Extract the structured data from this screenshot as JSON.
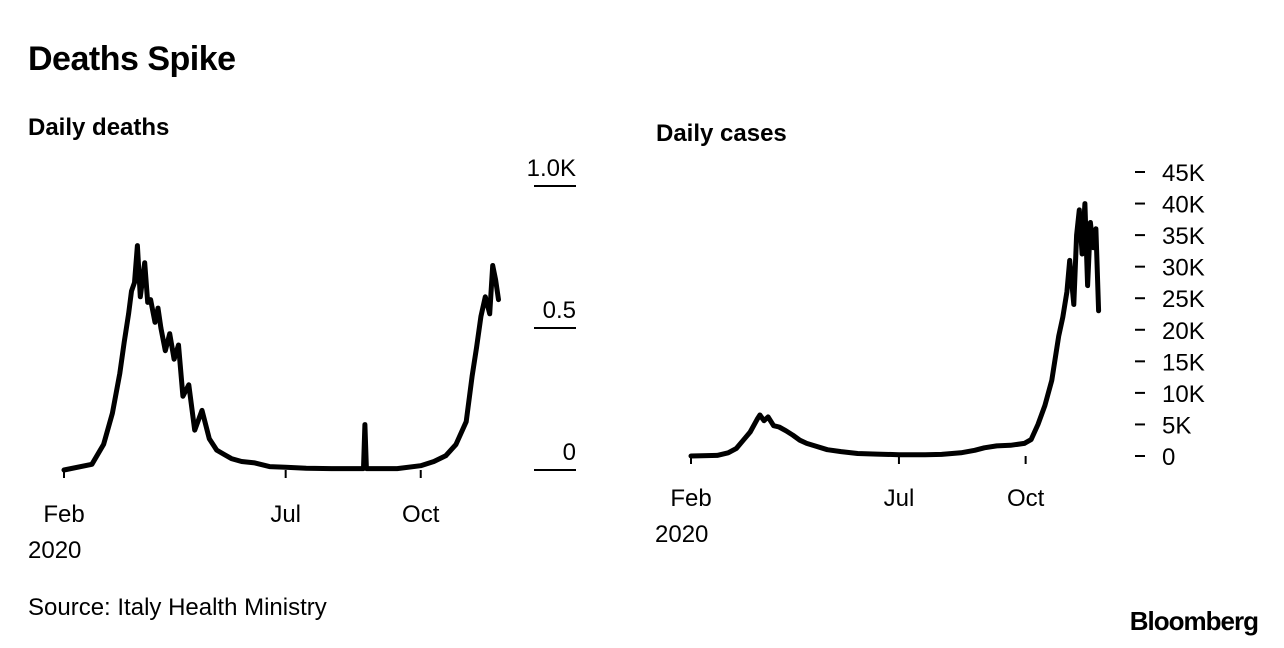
{
  "title": "Deaths Spike",
  "source": "Source: Italy Health Ministry",
  "brand": "Bloomberg",
  "line_color": "#000000",
  "chart_data": [
    {
      "type": "line",
      "title": "Daily deaths",
      "x_ticks": [
        "Feb",
        "Jul",
        "Oct"
      ],
      "x_tick_dates": [
        "2020-02-01",
        "2020-07-01",
        "2020-10-01"
      ],
      "x_year_label": "2020",
      "xlim": [
        "2020-02-01",
        "2020-11-24"
      ],
      "y_ticks": [
        "0",
        "0.5",
        "1.0K"
      ],
      "y_tick_values": [
        0,
        500,
        1000
      ],
      "ylim": [
        0,
        1000
      ],
      "grid": false,
      "series": [
        {
          "x": [
            "2020-02-01",
            "2020-02-20",
            "2020-02-28",
            "2020-03-05",
            "2020-03-10",
            "2020-03-13",
            "2020-03-16",
            "2020-03-18",
            "2020-03-20",
            "2020-03-22",
            "2020-03-24",
            "2020-03-27",
            "2020-03-29",
            "2020-03-31",
            "2020-04-03",
            "2020-04-05",
            "2020-04-07",
            "2020-04-10",
            "2020-04-13",
            "2020-04-16",
            "2020-04-19",
            "2020-04-22",
            "2020-04-26",
            "2020-04-30",
            "2020-05-05",
            "2020-05-10",
            "2020-05-15",
            "2020-05-20",
            "2020-05-25",
            "2020-06-01",
            "2020-06-10",
            "2020-06-20",
            "2020-07-01",
            "2020-07-15",
            "2020-08-01",
            "2020-08-15",
            "2020-08-23",
            "2020-08-24",
            "2020-08-25",
            "2020-09-01",
            "2020-09-15",
            "2020-10-01",
            "2020-10-10",
            "2020-10-18",
            "2020-10-25",
            "2020-11-01",
            "2020-11-05",
            "2020-11-08",
            "2020-11-11",
            "2020-11-14",
            "2020-11-17",
            "2020-11-19",
            "2020-11-21",
            "2020-11-23"
          ],
          "y": [
            0,
            20,
            90,
            200,
            340,
            450,
            550,
            630,
            660,
            790,
            610,
            730,
            590,
            600,
            520,
            570,
            500,
            420,
            480,
            390,
            440,
            260,
            300,
            140,
            210,
            110,
            70,
            55,
            40,
            30,
            25,
            12,
            10,
            6,
            5,
            5,
            5,
            160,
            5,
            5,
            5,
            15,
            30,
            50,
            90,
            170,
            330,
            430,
            540,
            610,
            550,
            720,
            670,
            600
          ]
        }
      ]
    },
    {
      "type": "line",
      "title": "Daily cases",
      "x_ticks": [
        "Feb",
        "Jul",
        "Oct"
      ],
      "x_tick_dates": [
        "2020-02-01",
        "2020-07-01",
        "2020-10-01"
      ],
      "x_year_label": "2020",
      "xlim": [
        "2020-02-01",
        "2020-11-24"
      ],
      "y_ticks": [
        "0",
        "5K",
        "10K",
        "15K",
        "20K",
        "25K",
        "30K",
        "35K",
        "40K",
        "45K"
      ],
      "y_tick_values": [
        0,
        5000,
        10000,
        15000,
        20000,
        25000,
        30000,
        35000,
        40000,
        45000
      ],
      "ylim": [
        0,
        45000
      ],
      "grid": false,
      "series": [
        {
          "x": [
            "2020-02-01",
            "2020-02-20",
            "2020-02-28",
            "2020-03-05",
            "2020-03-10",
            "2020-03-15",
            "2020-03-20",
            "2020-03-22",
            "2020-03-25",
            "2020-03-28",
            "2020-04-01",
            "2020-04-05",
            "2020-04-10",
            "2020-04-15",
            "2020-04-20",
            "2020-04-25",
            "2020-05-01",
            "2020-05-10",
            "2020-05-20",
            "2020-06-01",
            "2020-06-15",
            "2020-07-01",
            "2020-07-20",
            "2020-08-01",
            "2020-08-15",
            "2020-08-25",
            "2020-09-01",
            "2020-09-10",
            "2020-09-20",
            "2020-09-30",
            "2020-10-05",
            "2020-10-10",
            "2020-10-15",
            "2020-10-20",
            "2020-10-25",
            "2020-10-28",
            "2020-10-31",
            "2020-11-02",
            "2020-11-05",
            "2020-11-07",
            "2020-11-09",
            "2020-11-11",
            "2020-11-13",
            "2020-11-15",
            "2020-11-17",
            "2020-11-19",
            "2020-11-21",
            "2020-11-23"
          ],
          "y": [
            0,
            100,
            500,
            1200,
            2500,
            3800,
            5800,
            6500,
            5600,
            6200,
            4800,
            4600,
            4000,
            3300,
            2500,
            2000,
            1600,
            1000,
            700,
            400,
            300,
            200,
            200,
            250,
            500,
            900,
            1300,
            1600,
            1700,
            2000,
            2600,
            5000,
            8000,
            12000,
            19000,
            22000,
            26000,
            31000,
            24000,
            35000,
            39000,
            32000,
            40000,
            27000,
            37000,
            33000,
            36000,
            23000
          ]
        }
      ]
    }
  ]
}
